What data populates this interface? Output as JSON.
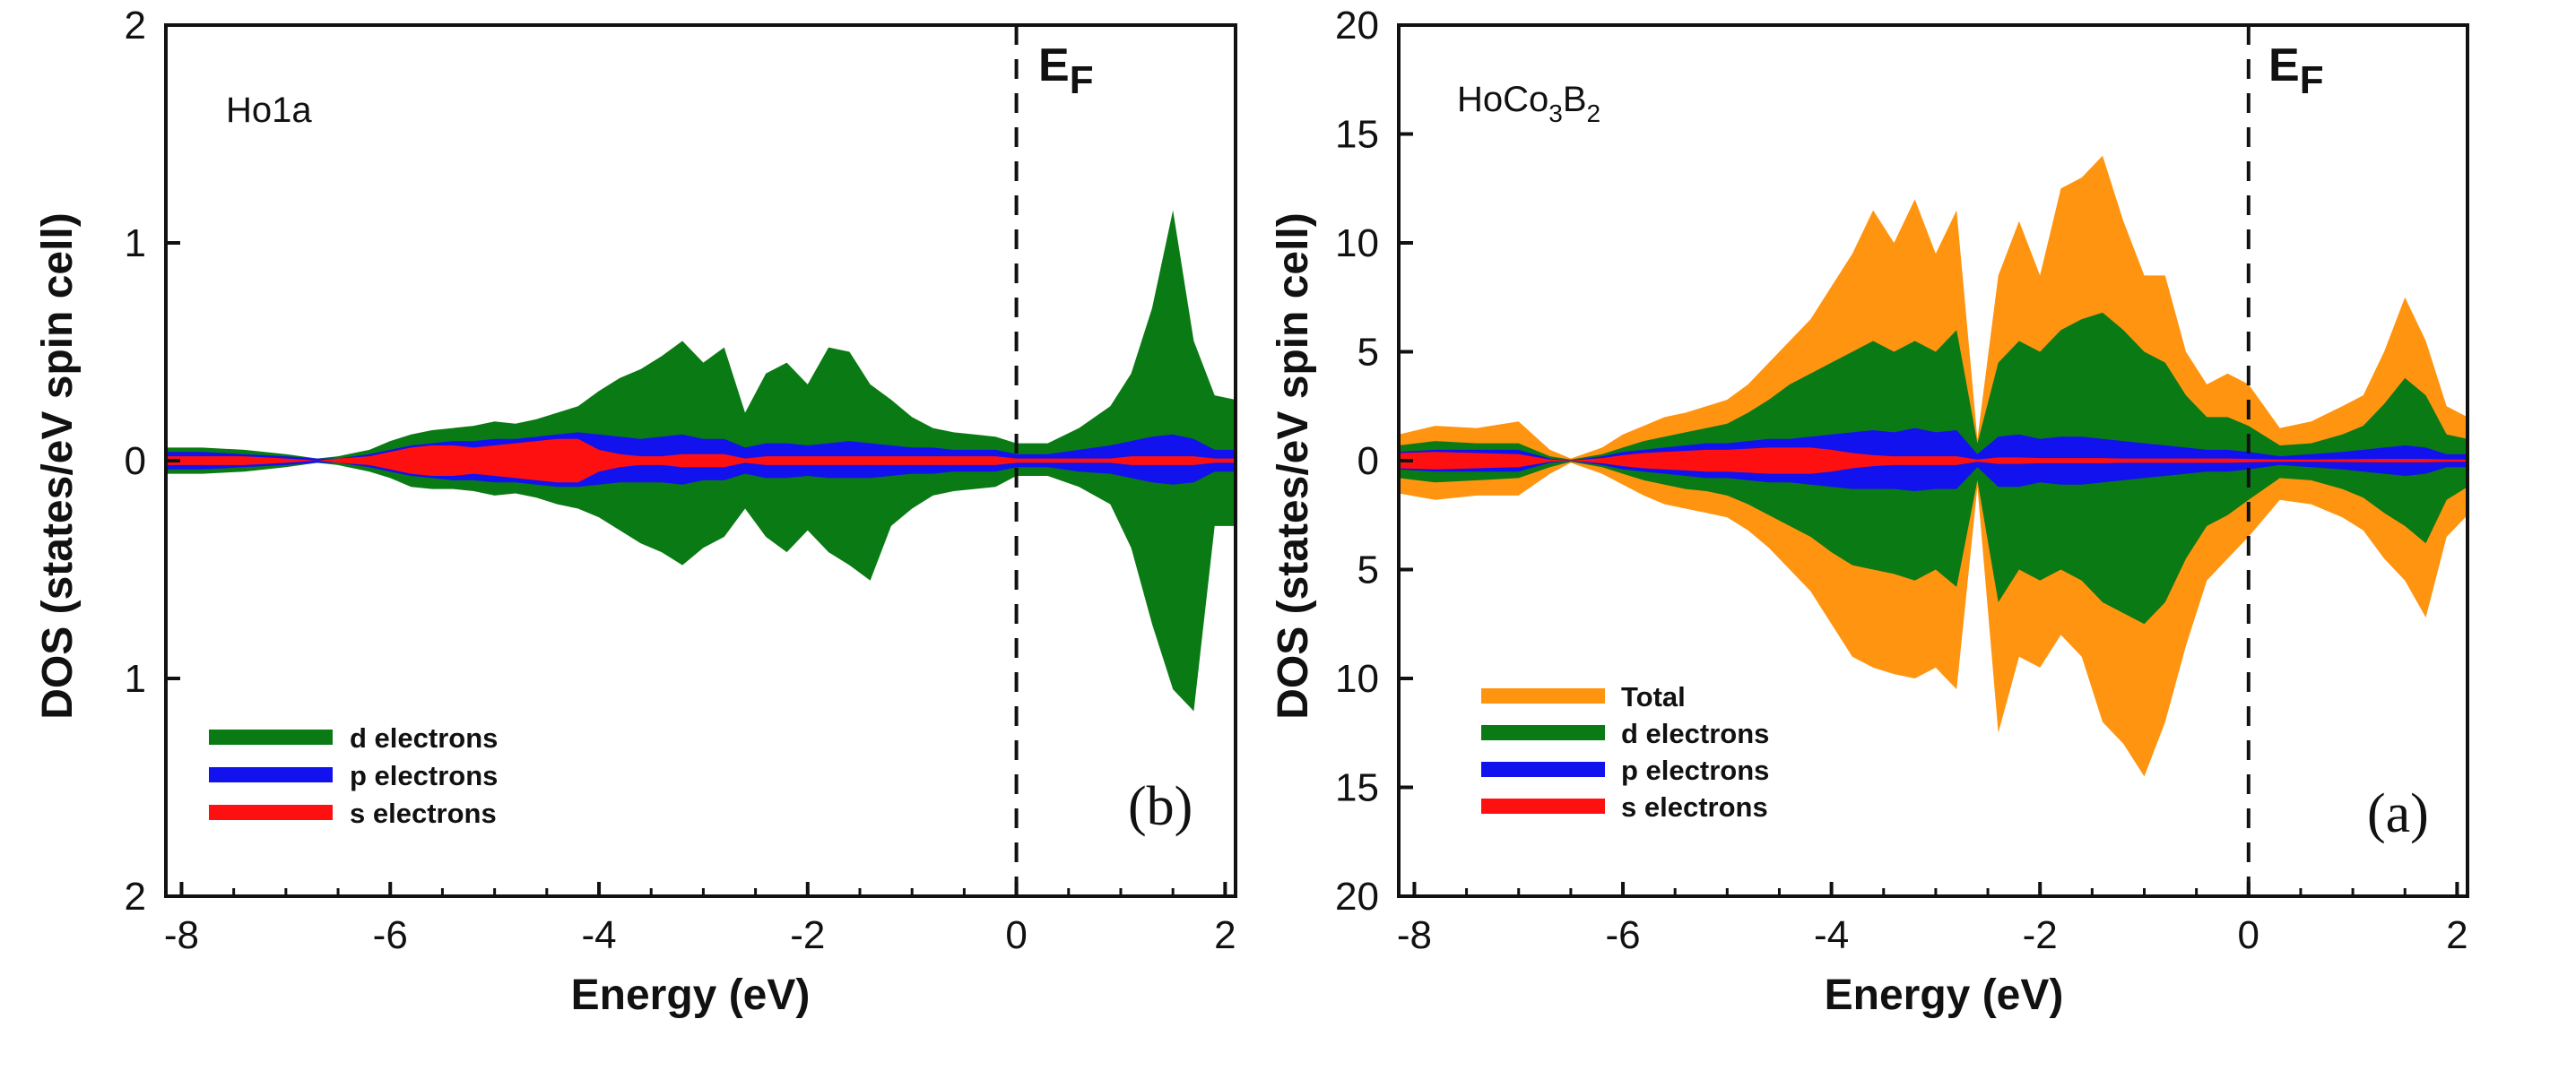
{
  "chart_data": [
    {
      "type": "area",
      "panel_label": "(b)",
      "inset_label": "Ho1a",
      "fermi_label": "E",
      "fermi_sub": "F",
      "fermi_energy": 0,
      "xlabel": "Energy (eV)",
      "ylabel": "DOS (states/eV spin cell)",
      "xlim": [
        -8.15,
        2.1
      ],
      "ylim": [
        -2,
        2
      ],
      "xticks": [
        -8,
        -6,
        -4,
        -2,
        0,
        2
      ],
      "xtick_labels": [
        "-8",
        "-6",
        "-4",
        "-2",
        "0",
        "2"
      ],
      "yticks": [
        2,
        1,
        0,
        -1,
        -2
      ],
      "ytick_labels": [
        "2",
        "1",
        "0",
        "1",
        "2"
      ],
      "legend_position": "bottom-left",
      "colors": {
        "d": "#0a7a14",
        "p": "#1212ee",
        "s": "#ff1010"
      },
      "x": [
        -8.15,
        -7.8,
        -7.4,
        -7.0,
        -6.7,
        -6.5,
        -6.2,
        -6.0,
        -5.8,
        -5.6,
        -5.4,
        -5.2,
        -5.0,
        -4.8,
        -4.6,
        -4.4,
        -4.2,
        -4.0,
        -3.8,
        -3.6,
        -3.4,
        -3.2,
        -3.0,
        -2.8,
        -2.6,
        -2.4,
        -2.2,
        -2.0,
        -1.8,
        -1.6,
        -1.4,
        -1.2,
        -1.0,
        -0.8,
        -0.6,
        -0.4,
        -0.2,
        0.0,
        0.3,
        0.6,
        0.9,
        1.1,
        1.3,
        1.5,
        1.7,
        1.9,
        2.1
      ],
      "series": [
        {
          "name": "d electrons",
          "up": [
            0.06,
            0.06,
            0.05,
            0.03,
            0.01,
            0.02,
            0.05,
            0.09,
            0.12,
            0.14,
            0.15,
            0.16,
            0.18,
            0.17,
            0.19,
            0.22,
            0.25,
            0.32,
            0.38,
            0.42,
            0.48,
            0.55,
            0.45,
            0.52,
            0.22,
            0.4,
            0.45,
            0.35,
            0.52,
            0.5,
            0.35,
            0.28,
            0.2,
            0.15,
            0.13,
            0.12,
            0.11,
            0.08,
            0.08,
            0.15,
            0.25,
            0.4,
            0.7,
            1.15,
            0.55,
            0.3,
            0.28
          ],
          "down": [
            0.06,
            0.06,
            0.05,
            0.03,
            0.01,
            0.02,
            0.05,
            0.08,
            0.12,
            0.13,
            0.13,
            0.14,
            0.16,
            0.15,
            0.17,
            0.2,
            0.22,
            0.26,
            0.32,
            0.38,
            0.42,
            0.48,
            0.4,
            0.35,
            0.22,
            0.35,
            0.42,
            0.32,
            0.42,
            0.48,
            0.55,
            0.3,
            0.22,
            0.16,
            0.14,
            0.13,
            0.12,
            0.07,
            0.07,
            0.12,
            0.2,
            0.4,
            0.75,
            1.05,
            1.15,
            0.3,
            0.3
          ]
        },
        {
          "name": "p electrons",
          "up": [
            0.04,
            0.04,
            0.03,
            0.02,
            0.01,
            0.01,
            0.03,
            0.05,
            0.07,
            0.08,
            0.09,
            0.09,
            0.1,
            0.1,
            0.11,
            0.12,
            0.13,
            0.12,
            0.11,
            0.1,
            0.11,
            0.12,
            0.1,
            0.1,
            0.06,
            0.08,
            0.08,
            0.07,
            0.08,
            0.09,
            0.08,
            0.07,
            0.06,
            0.06,
            0.05,
            0.05,
            0.05,
            0.03,
            0.03,
            0.05,
            0.07,
            0.09,
            0.11,
            0.12,
            0.1,
            0.05,
            0.05
          ],
          "down": [
            0.04,
            0.04,
            0.03,
            0.02,
            0.01,
            0.01,
            0.03,
            0.05,
            0.07,
            0.08,
            0.09,
            0.09,
            0.1,
            0.1,
            0.11,
            0.12,
            0.12,
            0.11,
            0.1,
            0.1,
            0.1,
            0.11,
            0.09,
            0.09,
            0.06,
            0.08,
            0.08,
            0.07,
            0.08,
            0.08,
            0.08,
            0.07,
            0.06,
            0.06,
            0.05,
            0.05,
            0.05,
            0.03,
            0.03,
            0.05,
            0.06,
            0.08,
            0.1,
            0.11,
            0.1,
            0.05,
            0.05
          ]
        },
        {
          "name": "s electrons",
          "up": [
            0.02,
            0.02,
            0.02,
            0.01,
            0.0,
            0.01,
            0.02,
            0.04,
            0.06,
            0.07,
            0.07,
            0.06,
            0.07,
            0.08,
            0.09,
            0.1,
            0.1,
            0.05,
            0.03,
            0.02,
            0.02,
            0.03,
            0.03,
            0.03,
            0.01,
            0.02,
            0.02,
            0.02,
            0.02,
            0.02,
            0.02,
            0.02,
            0.02,
            0.02,
            0.02,
            0.02,
            0.02,
            0.01,
            0.01,
            0.01,
            0.01,
            0.02,
            0.02,
            0.02,
            0.02,
            0.01,
            0.01
          ],
          "down": [
            0.02,
            0.02,
            0.02,
            0.01,
            0.0,
            0.01,
            0.02,
            0.04,
            0.06,
            0.07,
            0.07,
            0.06,
            0.07,
            0.08,
            0.09,
            0.1,
            0.1,
            0.05,
            0.03,
            0.02,
            0.02,
            0.03,
            0.03,
            0.03,
            0.01,
            0.02,
            0.02,
            0.02,
            0.02,
            0.02,
            0.02,
            0.02,
            0.02,
            0.02,
            0.02,
            0.02,
            0.02,
            0.01,
            0.01,
            0.01,
            0.01,
            0.02,
            0.02,
            0.02,
            0.02,
            0.01,
            0.01
          ]
        }
      ]
    },
    {
      "type": "area",
      "panel_label": "(a)",
      "inset_label": "HoCo",
      "inset_sub1": "3",
      "inset_mid": "B",
      "inset_sub2": "2",
      "fermi_label": "E",
      "fermi_sub": "F",
      "fermi_energy": 0,
      "xlabel": "Energy (eV)",
      "ylabel": "DOS (states/eV spin cell)",
      "xlim": [
        -8.15,
        2.1
      ],
      "ylim": [
        -20,
        20
      ],
      "xticks": [
        -8,
        -6,
        -4,
        -2,
        0,
        2
      ],
      "xtick_labels": [
        "-8",
        "-6",
        "-4",
        "-2",
        "0",
        "2"
      ],
      "yticks": [
        20,
        15,
        10,
        5,
        0,
        -5,
        -10,
        -15,
        -20
      ],
      "ytick_labels": [
        "20",
        "15",
        "10",
        "5",
        "0",
        "5",
        "10",
        "15",
        "20"
      ],
      "legend_position": "bottom-left",
      "colors": {
        "total": "#ff9410",
        "d": "#0a7a14",
        "p": "#1212ee",
        "s": "#ff1010"
      },
      "x": [
        -8.15,
        -7.8,
        -7.4,
        -7.0,
        -6.7,
        -6.5,
        -6.2,
        -6.0,
        -5.8,
        -5.6,
        -5.4,
        -5.2,
        -5.0,
        -4.8,
        -4.6,
        -4.4,
        -4.2,
        -4.0,
        -3.8,
        -3.6,
        -3.4,
        -3.2,
        -3.0,
        -2.8,
        -2.6,
        -2.4,
        -2.2,
        -2.0,
        -1.8,
        -1.6,
        -1.4,
        -1.2,
        -1.0,
        -0.8,
        -0.6,
        -0.4,
        -0.2,
        0.0,
        0.3,
        0.6,
        0.9,
        1.1,
        1.3,
        1.5,
        1.7,
        1.9,
        2.1
      ],
      "series": [
        {
          "name": "Total",
          "up": [
            1.2,
            1.6,
            1.5,
            1.8,
            0.5,
            0.1,
            0.6,
            1.2,
            1.6,
            2.0,
            2.2,
            2.5,
            2.8,
            3.5,
            4.5,
            5.5,
            6.5,
            8.0,
            9.5,
            11.5,
            10.0,
            12.0,
            9.5,
            11.5,
            1.0,
            8.5,
            11.0,
            8.5,
            12.5,
            13.0,
            14.0,
            11.0,
            8.5,
            8.5,
            5.0,
            3.5,
            4.0,
            3.5,
            1.5,
            1.8,
            2.5,
            3.0,
            5.0,
            7.5,
            5.5,
            2.5,
            2.0
          ],
          "down": [
            1.5,
            1.8,
            1.6,
            1.6,
            0.6,
            0.1,
            0.6,
            1.1,
            1.6,
            2.0,
            2.2,
            2.4,
            2.6,
            3.2,
            4.0,
            5.0,
            6.0,
            7.5,
            9.0,
            9.5,
            9.8,
            10.0,
            9.5,
            10.5,
            1.2,
            12.5,
            9.0,
            9.5,
            8.0,
            9.0,
            12.0,
            13.0,
            14.5,
            12.0,
            8.5,
            5.5,
            4.5,
            3.5,
            1.8,
            2.0,
            2.6,
            3.2,
            4.5,
            5.5,
            7.2,
            3.5,
            2.5
          ]
        },
        {
          "name": "d electrons",
          "up": [
            0.7,
            0.9,
            0.8,
            0.8,
            0.2,
            0.05,
            0.3,
            0.6,
            0.9,
            1.1,
            1.3,
            1.5,
            1.7,
            2.2,
            2.8,
            3.5,
            4.0,
            4.5,
            5.0,
            5.5,
            5.0,
            5.5,
            5.0,
            6.0,
            0.8,
            4.5,
            5.5,
            5.0,
            6.0,
            6.5,
            6.8,
            6.0,
            5.0,
            4.5,
            3.0,
            2.0,
            2.0,
            1.6,
            0.7,
            0.8,
            1.2,
            1.6,
            2.6,
            3.8,
            3.0,
            1.2,
            1.0
          ],
          "down": [
            0.8,
            1.0,
            0.9,
            0.8,
            0.3,
            0.05,
            0.3,
            0.6,
            0.9,
            1.1,
            1.3,
            1.4,
            1.6,
            2.0,
            2.5,
            3.0,
            3.5,
            4.2,
            4.8,
            5.0,
            5.2,
            5.5,
            5.0,
            5.8,
            0.9,
            6.5,
            5.0,
            5.5,
            5.0,
            5.5,
            6.5,
            7.0,
            7.5,
            6.5,
            4.5,
            3.0,
            2.5,
            1.8,
            0.8,
            0.9,
            1.3,
            1.7,
            2.4,
            3.0,
            3.8,
            1.8,
            1.2
          ]
        },
        {
          "name": "p electrons",
          "up": [
            0.4,
            0.5,
            0.5,
            0.5,
            0.1,
            0.02,
            0.2,
            0.4,
            0.5,
            0.6,
            0.7,
            0.8,
            0.8,
            0.9,
            1.0,
            1.0,
            1.1,
            1.2,
            1.3,
            1.4,
            1.3,
            1.5,
            1.3,
            1.4,
            0.3,
            1.1,
            1.2,
            1.0,
            1.1,
            1.1,
            1.0,
            0.9,
            0.8,
            0.7,
            0.6,
            0.5,
            0.5,
            0.4,
            0.2,
            0.3,
            0.4,
            0.5,
            0.6,
            0.7,
            0.6,
            0.3,
            0.3
          ],
          "down": [
            0.4,
            0.5,
            0.5,
            0.5,
            0.1,
            0.02,
            0.2,
            0.4,
            0.5,
            0.6,
            0.7,
            0.8,
            0.8,
            0.9,
            1.0,
            1.0,
            1.1,
            1.2,
            1.3,
            1.3,
            1.3,
            1.4,
            1.3,
            1.3,
            0.3,
            1.2,
            1.2,
            1.0,
            1.1,
            1.1,
            1.0,
            0.9,
            0.8,
            0.7,
            0.6,
            0.5,
            0.5,
            0.4,
            0.2,
            0.3,
            0.4,
            0.5,
            0.6,
            0.7,
            0.6,
            0.3,
            0.3
          ]
        },
        {
          "name": "s electrons",
          "up": [
            0.35,
            0.4,
            0.35,
            0.3,
            0.05,
            0.01,
            0.12,
            0.25,
            0.35,
            0.4,
            0.45,
            0.5,
            0.5,
            0.55,
            0.6,
            0.6,
            0.6,
            0.5,
            0.35,
            0.25,
            0.2,
            0.2,
            0.2,
            0.2,
            0.05,
            0.15,
            0.15,
            0.12,
            0.12,
            0.12,
            0.12,
            0.1,
            0.1,
            0.1,
            0.1,
            0.1,
            0.1,
            0.08,
            0.05,
            0.05,
            0.06,
            0.07,
            0.08,
            0.08,
            0.08,
            0.05,
            0.05
          ],
          "down": [
            0.35,
            0.4,
            0.35,
            0.3,
            0.05,
            0.01,
            0.12,
            0.25,
            0.35,
            0.4,
            0.45,
            0.5,
            0.5,
            0.55,
            0.6,
            0.6,
            0.6,
            0.5,
            0.35,
            0.25,
            0.2,
            0.2,
            0.2,
            0.2,
            0.05,
            0.15,
            0.15,
            0.12,
            0.12,
            0.12,
            0.12,
            0.1,
            0.1,
            0.1,
            0.1,
            0.1,
            0.1,
            0.08,
            0.05,
            0.05,
            0.06,
            0.07,
            0.08,
            0.08,
            0.08,
            0.05,
            0.05
          ]
        }
      ]
    }
  ]
}
